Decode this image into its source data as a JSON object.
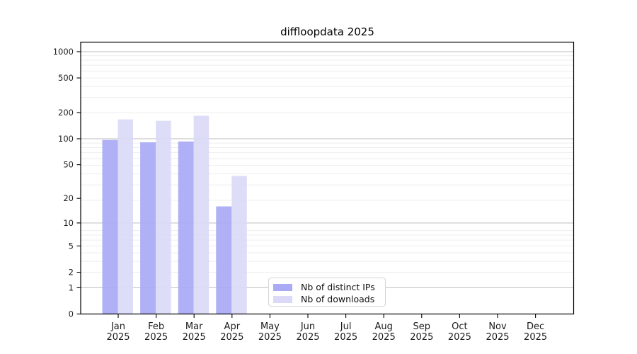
{
  "title": "diffloopdata 2025",
  "colors": {
    "distinct_ips": "#aaaaf5",
    "downloads": "#dadaf8",
    "major_grid": "#c6c6c6",
    "minor_grid": "#ededed",
    "axis": "#000000",
    "text": "#1a1a1a"
  },
  "legend": {
    "items": [
      {
        "label": "Nb of distinct IPs",
        "color": "#aaaaf5"
      },
      {
        "label": "Nb of downloads",
        "color": "#dadaf8"
      }
    ]
  },
  "chart_data": {
    "type": "bar",
    "title": "diffloopdata 2025",
    "categories": [
      "Jan 2025",
      "Feb 2025",
      "Mar 2025",
      "Apr 2025",
      "May 2025",
      "Jun 2025",
      "Jul 2025",
      "Aug 2025",
      "Sep 2025",
      "Oct 2025",
      "Nov 2025",
      "Dec 2025"
    ],
    "month_labels": [
      "Jan",
      "Feb",
      "Mar",
      "Apr",
      "May",
      "Jun",
      "Jul",
      "Aug",
      "Sep",
      "Oct",
      "Nov",
      "Dec"
    ],
    "year_label": "2025",
    "series": [
      {
        "name": "Nb of distinct IPs",
        "color": "#aaaaf5",
        "values": [
          97,
          91,
          93,
          16,
          null,
          null,
          null,
          null,
          null,
          null,
          null,
          null
        ]
      },
      {
        "name": "Nb of downloads",
        "color": "#dadaf8",
        "values": [
          167,
          161,
          184,
          37,
          null,
          null,
          null,
          null,
          null,
          null,
          null,
          null
        ]
      }
    ],
    "yscale": "log1p",
    "yticks": [
      0,
      1,
      2,
      5,
      10,
      20,
      50,
      100,
      200,
      500,
      1000
    ],
    "ylim": [
      0,
      1200
    ],
    "grid": true,
    "legend_position": "bottom-center"
  }
}
